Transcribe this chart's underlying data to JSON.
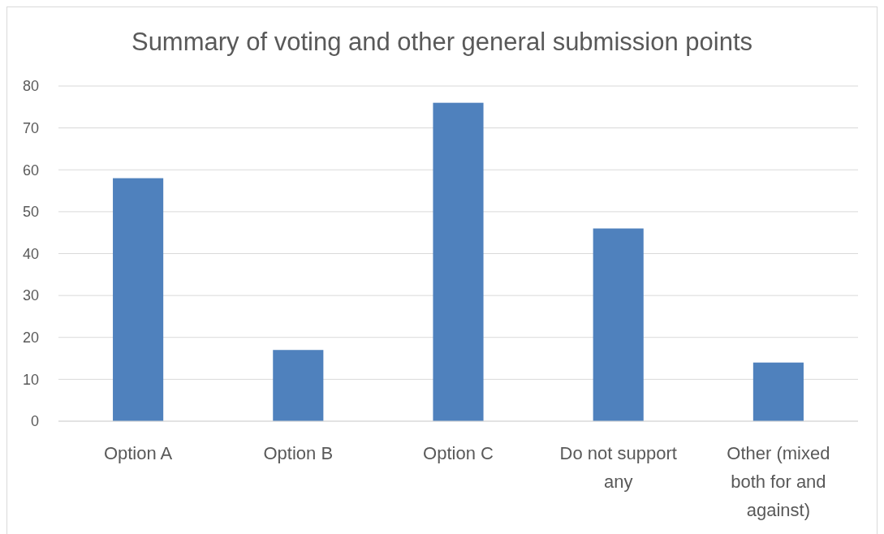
{
  "chart_data": {
    "type": "bar",
    "title": "Summary of voting and other general submission points",
    "categories": [
      "Option A",
      "Option B",
      "Option C",
      "Do not support any",
      "Other (mixed both for and against)"
    ],
    "values": [
      58,
      17,
      76,
      46,
      14
    ],
    "color": "#4f81bd",
    "ylim": [
      0,
      80
    ],
    "yticks": [
      0,
      10,
      20,
      30,
      40,
      50,
      60,
      70,
      80
    ],
    "grid": "y"
  }
}
